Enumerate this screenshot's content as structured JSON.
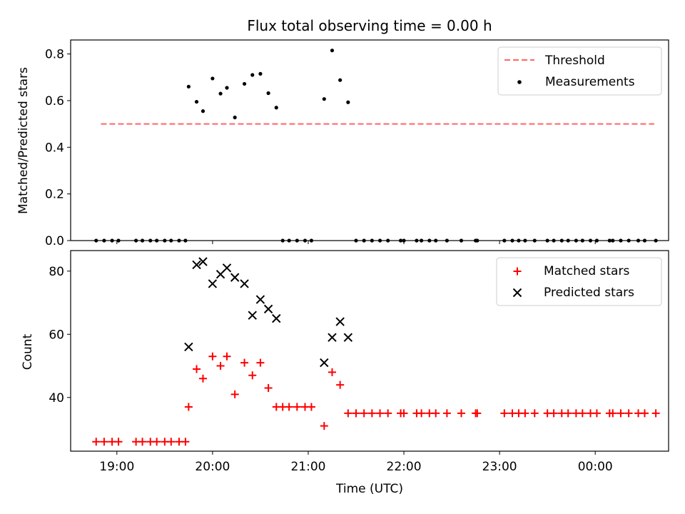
{
  "chart_data": [
    {
      "type": "scatter",
      "title": "Flux total observing time = 0.00 h",
      "xlabel": "",
      "ylabel": "Matched/Predicted stars",
      "ylim": [
        0.0,
        0.86
      ],
      "yticks": [
        0.0,
        0.2,
        0.4,
        0.6,
        0.8
      ],
      "yticklabels": [
        "0.0",
        "0.2",
        "0.4",
        "0.6",
        "0.8"
      ],
      "xlim": [
        "18:31",
        "00:46"
      ],
      "xticks": [
        "19:00",
        "20:00",
        "21:00",
        "22:00",
        "23:00",
        "00:00"
      ],
      "xticklabels": [],
      "legend": "top-right",
      "threshold": {
        "name": "Threshold",
        "value": 0.5,
        "x": [
          "18:50",
          "00:37"
        ],
        "color": "#ff6666",
        "style": "dashed"
      },
      "series": [
        {
          "name": "Measurements",
          "color": "#000000",
          "marker": "dot",
          "points": [
            [
              "18:47",
              0.0
            ],
            [
              "18:52",
              0.0
            ],
            [
              "18:57",
              0.0
            ],
            [
              "19:01",
              0.0
            ],
            [
              "19:12",
              0.0
            ],
            [
              "19:16",
              0.0
            ],
            [
              "19:21",
              0.0
            ],
            [
              "19:25",
              0.0
            ],
            [
              "19:30",
              0.0
            ],
            [
              "19:34",
              0.0
            ],
            [
              "19:39",
              0.0
            ],
            [
              "19:43",
              0.0
            ],
            [
              "19:45",
              0.66
            ],
            [
              "19:50",
              0.595
            ],
            [
              "19:54",
              0.555
            ],
            [
              "20:00",
              0.695
            ],
            [
              "20:05",
              0.63
            ],
            [
              "20:09",
              0.655
            ],
            [
              "20:14",
              0.528
            ],
            [
              "20:20",
              0.672
            ],
            [
              "20:25",
              0.71
            ],
            [
              "20:30",
              0.715
            ],
            [
              "20:35",
              0.632
            ],
            [
              "20:40",
              0.57
            ],
            [
              "20:44",
              0.0
            ],
            [
              "20:48",
              0.0
            ],
            [
              "20:53",
              0.0
            ],
            [
              "20:58",
              0.0
            ],
            [
              "21:02",
              0.0
            ],
            [
              "21:10",
              0.607
            ],
            [
              "21:15",
              0.815
            ],
            [
              "21:20",
              0.688
            ],
            [
              "21:25",
              0.593
            ],
            [
              "21:30",
              0.0
            ],
            [
              "21:35",
              0.0
            ],
            [
              "21:40",
              0.0
            ],
            [
              "21:45",
              0.0
            ],
            [
              "21:50",
              0.0
            ],
            [
              "21:58",
              0.0
            ],
            [
              "22:00",
              0.0
            ],
            [
              "22:08",
              0.0
            ],
            [
              "22:11",
              0.0
            ],
            [
              "22:16",
              0.0
            ],
            [
              "22:20",
              0.0
            ],
            [
              "22:27",
              0.0
            ],
            [
              "22:36",
              0.0
            ],
            [
              "22:45",
              0.0
            ],
            [
              "22:46",
              0.0
            ],
            [
              "23:03",
              0.0
            ],
            [
              "23:08",
              0.0
            ],
            [
              "23:12",
              0.0
            ],
            [
              "23:16",
              0.0
            ],
            [
              "23:22",
              0.0
            ],
            [
              "23:30",
              0.0
            ],
            [
              "23:34",
              0.0
            ],
            [
              "23:39",
              0.0
            ],
            [
              "23:43",
              0.0
            ],
            [
              "23:48",
              0.0
            ],
            [
              "23:52",
              0.0
            ],
            [
              "23:57",
              0.0
            ],
            [
              "00:01",
              0.0
            ],
            [
              "00:09",
              0.0
            ],
            [
              "00:11",
              0.0
            ],
            [
              "00:16",
              0.0
            ],
            [
              "00:21",
              0.0
            ],
            [
              "00:27",
              0.0
            ],
            [
              "00:31",
              0.0
            ],
            [
              "00:38",
              0.0
            ]
          ]
        }
      ]
    },
    {
      "type": "scatter",
      "title": "",
      "xlabel": "Time (UTC)",
      "ylabel": "Count",
      "ylim": [
        23,
        86.5
      ],
      "yticks": [
        40,
        60,
        80
      ],
      "yticklabels": [
        "40",
        "60",
        "80"
      ],
      "xlim": [
        "18:31",
        "00:46"
      ],
      "xticks": [
        "19:00",
        "20:00",
        "21:00",
        "22:00",
        "23:00",
        "00:00"
      ],
      "xticklabels": [
        "19:00",
        "20:00",
        "21:00",
        "22:00",
        "23:00",
        "00:00"
      ],
      "legend": "top-right",
      "series": [
        {
          "name": "Matched stars",
          "color": "#ff0000",
          "marker": "plus",
          "points": [
            [
              "18:47",
              26
            ],
            [
              "18:52",
              26
            ],
            [
              "18:57",
              26
            ],
            [
              "19:01",
              26
            ],
            [
              "19:12",
              26
            ],
            [
              "19:16",
              26
            ],
            [
              "19:21",
              26
            ],
            [
              "19:25",
              26
            ],
            [
              "19:30",
              26
            ],
            [
              "19:34",
              26
            ],
            [
              "19:39",
              26
            ],
            [
              "19:43",
              26
            ],
            [
              "19:45",
              37
            ],
            [
              "19:50",
              49
            ],
            [
              "19:54",
              46
            ],
            [
              "20:00",
              53
            ],
            [
              "20:05",
              50
            ],
            [
              "20:09",
              53
            ],
            [
              "20:14",
              41
            ],
            [
              "20:20",
              51
            ],
            [
              "20:25",
              47
            ],
            [
              "20:30",
              51
            ],
            [
              "20:35",
              43
            ],
            [
              "20:40",
              37
            ],
            [
              "20:44",
              37
            ],
            [
              "20:48",
              37
            ],
            [
              "20:53",
              37
            ],
            [
              "20:58",
              37
            ],
            [
              "21:02",
              37
            ],
            [
              "21:10",
              31
            ],
            [
              "21:15",
              48
            ],
            [
              "21:20",
              44
            ],
            [
              "21:25",
              35
            ],
            [
              "21:30",
              35
            ],
            [
              "21:35",
              35
            ],
            [
              "21:40",
              35
            ],
            [
              "21:45",
              35
            ],
            [
              "21:50",
              35
            ],
            [
              "21:58",
              35
            ],
            [
              "22:00",
              35
            ],
            [
              "22:08",
              35
            ],
            [
              "22:11",
              35
            ],
            [
              "22:16",
              35
            ],
            [
              "22:20",
              35
            ],
            [
              "22:27",
              35
            ],
            [
              "22:36",
              35
            ],
            [
              "22:45",
              35
            ],
            [
              "22:46",
              35
            ],
            [
              "23:03",
              35
            ],
            [
              "23:08",
              35
            ],
            [
              "23:12",
              35
            ],
            [
              "23:16",
              35
            ],
            [
              "23:22",
              35
            ],
            [
              "23:30",
              35
            ],
            [
              "23:34",
              35
            ],
            [
              "23:39",
              35
            ],
            [
              "23:43",
              35
            ],
            [
              "23:48",
              35
            ],
            [
              "23:52",
              35
            ],
            [
              "23:57",
              35
            ],
            [
              "00:01",
              35
            ],
            [
              "00:09",
              35
            ],
            [
              "00:11",
              35
            ],
            [
              "00:16",
              35
            ],
            [
              "00:21",
              35
            ],
            [
              "00:27",
              35
            ],
            [
              "00:31",
              35
            ],
            [
              "00:38",
              35
            ]
          ]
        },
        {
          "name": "Predicted stars",
          "color": "#000000",
          "marker": "x",
          "points": [
            [
              "19:45",
              56
            ],
            [
              "19:50",
              82
            ],
            [
              "19:54",
              83
            ],
            [
              "20:00",
              76
            ],
            [
              "20:05",
              79
            ],
            [
              "20:09",
              81
            ],
            [
              "20:14",
              78
            ],
            [
              "20:20",
              76
            ],
            [
              "20:25",
              66
            ],
            [
              "20:30",
              71
            ],
            [
              "20:35",
              68
            ],
            [
              "20:40",
              65
            ],
            [
              "21:10",
              51
            ],
            [
              "21:15",
              59
            ],
            [
              "21:20",
              64
            ],
            [
              "21:25",
              59
            ]
          ]
        }
      ]
    }
  ]
}
